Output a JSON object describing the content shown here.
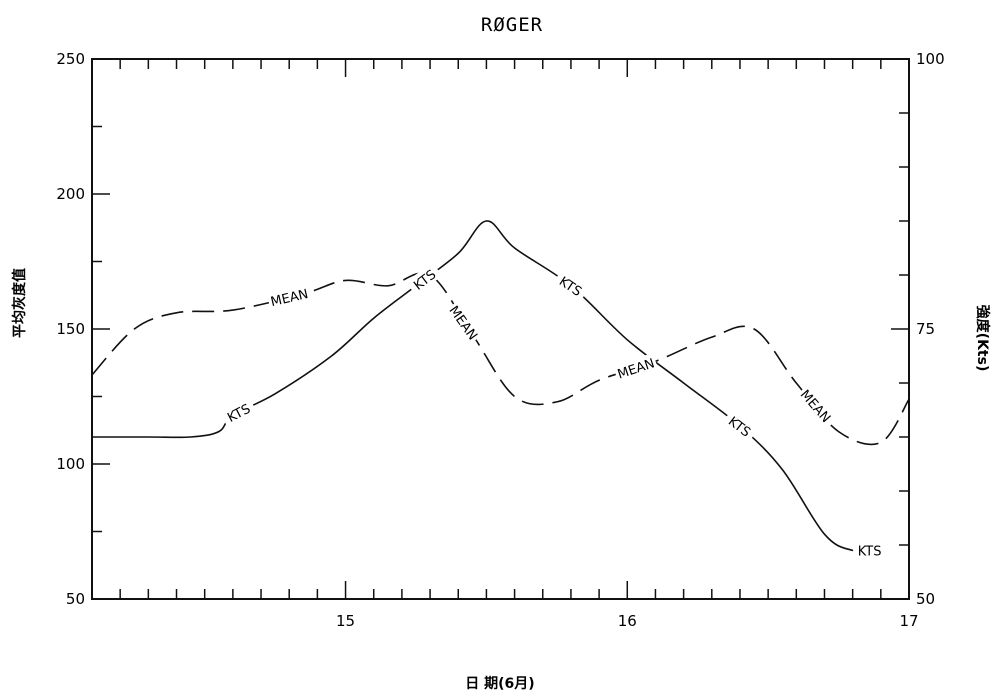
{
  "chart_data": {
    "type": "line",
    "title": "RØGER",
    "xlabel": "日 期(6月)",
    "ylabel_left": "平均灰度值",
    "ylabel_right": "強度(Kts)",
    "xlim": [
      14.1,
      17
    ],
    "ylim_left": [
      50,
      250
    ],
    "ylim_right": [
      50,
      100
    ],
    "x_ticks": [
      15,
      16,
      17
    ],
    "y_left_ticks": [
      50,
      100,
      150,
      200,
      250
    ],
    "y_right_ticks": [
      50,
      75,
      100
    ],
    "grid": false,
    "series": [
      {
        "name": "KTS",
        "axis": "right",
        "style": "solid",
        "labels": [
          "KTS",
          "KTS",
          "KTS",
          "KTS",
          "KTS"
        ],
        "x": [
          14.1,
          14.3,
          14.45,
          14.55,
          14.6,
          14.75,
          14.95,
          15.1,
          15.25,
          15.4,
          15.5,
          15.6,
          15.8,
          16.0,
          16.2,
          16.4,
          16.55,
          16.7,
          16.8,
          16.9
        ],
        "y": [
          65,
          65,
          65,
          65.5,
          67,
          69,
          72.5,
          76,
          79,
          82,
          85,
          82.5,
          79,
          74,
          70,
          66,
          62,
          56,
          54.5,
          54.5
        ]
      },
      {
        "name": "MEAN",
        "axis": "left",
        "style": "dashed",
        "labels": [
          "MEAN",
          "MEAN",
          "MEAN",
          "MEAN"
        ],
        "x": [
          14.1,
          14.25,
          14.4,
          14.6,
          14.85,
          15.0,
          15.15,
          15.3,
          15.45,
          15.6,
          15.75,
          15.9,
          16.1,
          16.3,
          16.45,
          16.6,
          16.75,
          16.9,
          17.0
        ],
        "y": [
          133,
          150,
          156,
          157,
          163,
          168,
          166,
          170,
          148,
          125,
          123,
          131,
          138,
          147,
          150,
          130,
          112,
          108,
          124
        ]
      }
    ]
  }
}
